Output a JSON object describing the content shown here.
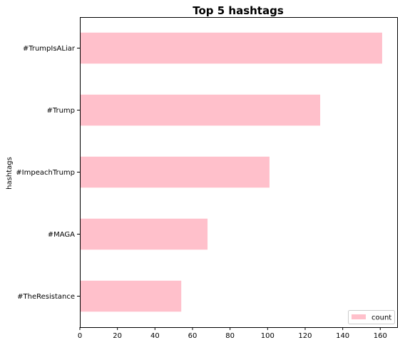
{
  "chart_data": {
    "type": "bar",
    "orientation": "horizontal",
    "title": "Top 5 hashtags",
    "xlabel": "",
    "ylabel": "hashtags",
    "categories": [
      "#TrumpIsALiar",
      "#Trump",
      "#ImpeachTrump",
      "#MAGA",
      "#TheResistance"
    ],
    "series": [
      {
        "name": "count",
        "values": [
          161,
          128,
          101,
          68,
          54
        ]
      }
    ],
    "xlim": [
      0,
      169
    ],
    "xticks": [
      0,
      20,
      40,
      60,
      80,
      100,
      120,
      140,
      160
    ],
    "grid": false,
    "legend": "lower right",
    "bar_color": "#ffc0cb"
  }
}
